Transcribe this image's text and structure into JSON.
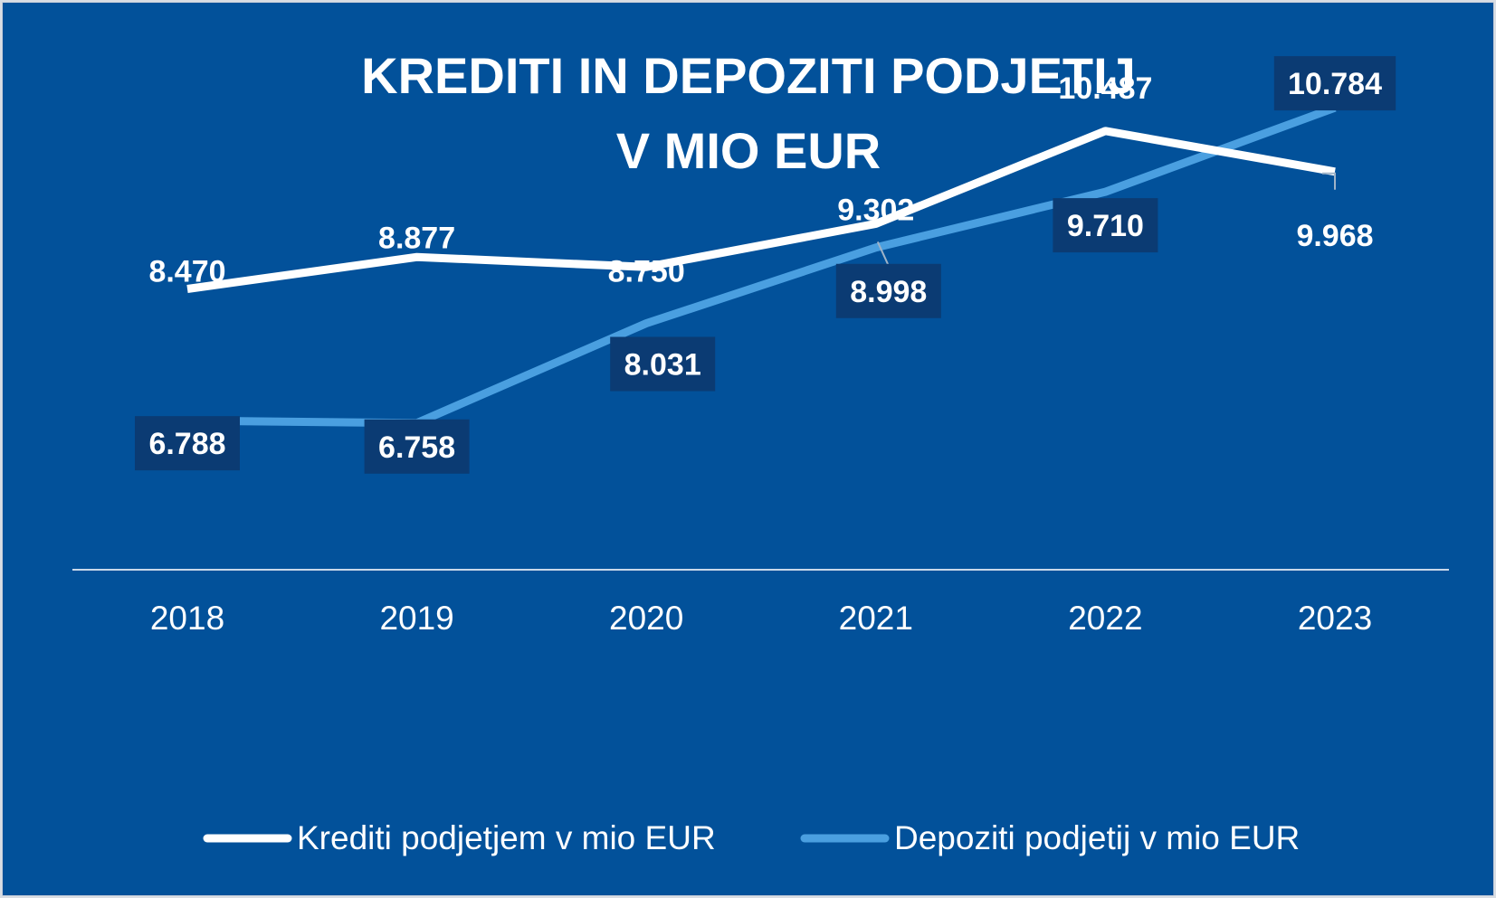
{
  "chart_data": {
    "type": "line",
    "title": "KREDITI IN DEPOZITI PODJETIJ",
    "subtitle": "V MIO EUR",
    "x": [
      "2018",
      "2019",
      "2020",
      "2021",
      "2022",
      "2023"
    ],
    "series": [
      {
        "name": "Krediti podjetjem v mio EUR",
        "values": [
          8470,
          8877,
          8750,
          9302,
          10487,
          9968
        ],
        "labels": [
          "8.470",
          "8.877",
          "8.750",
          "9.302",
          "10.487",
          "9.968"
        ],
        "color": "#ffffff"
      },
      {
        "name": "Depoziti podjetij v mio EUR",
        "values": [
          6788,
          6758,
          8031,
          8998,
          9710,
          10784
        ],
        "labels": [
          "6.788",
          "6.758",
          "8.031",
          "8.998",
          "9.710",
          "10.784"
        ],
        "color": "#4a9fe0"
      }
    ],
    "ylim": [
      0,
      12000
    ],
    "grid": false,
    "legend": "bottom",
    "background": "#02519a",
    "label_box_color": "#0b3b73"
  }
}
